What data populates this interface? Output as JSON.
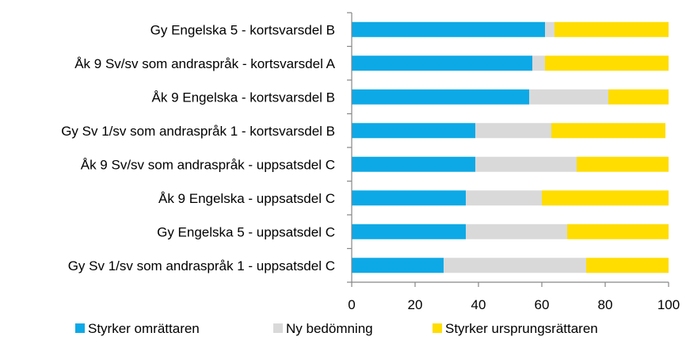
{
  "chart_data": {
    "type": "bar",
    "orientation": "horizontal",
    "stacked": true,
    "categories": [
      "Gy Engelska 5 - kortsvarsdel B",
      "Åk 9 Sv/sv som andraspråk - kortsvarsdel A",
      "Åk 9 Engelska - kortsvarsdel B",
      "Gy Sv 1/sv som andraspråk 1 - kortsvarsdel B",
      "Åk 9 Sv/sv som andraspråk - uppsatsdel C",
      "Åk 9 Engelska - uppsatsdel C",
      "Gy Engelska 5 - uppsatsdel C",
      "Gy Sv 1/sv som andraspråk 1 - uppsatsdel C"
    ],
    "series": [
      {
        "name": "Styrker omrättaren",
        "color": "#0DA9E6",
        "values": [
          61,
          57,
          56,
          39,
          39,
          36,
          36,
          29
        ]
      },
      {
        "name": "Ny bedömning",
        "color": "#D9D9D9",
        "values": [
          3,
          4,
          25,
          24,
          32,
          24,
          32,
          45
        ]
      },
      {
        "name": "Styrker ursprungsrättaren",
        "color": "#FFDD00",
        "values": [
          36,
          39,
          19,
          36,
          29,
          40,
          32,
          26
        ]
      }
    ],
    "xlim": [
      0,
      100
    ],
    "xticks": [
      "0",
      "20",
      "40",
      "60",
      "80",
      "100"
    ],
    "grid": false,
    "legend_position": "bottom"
  }
}
